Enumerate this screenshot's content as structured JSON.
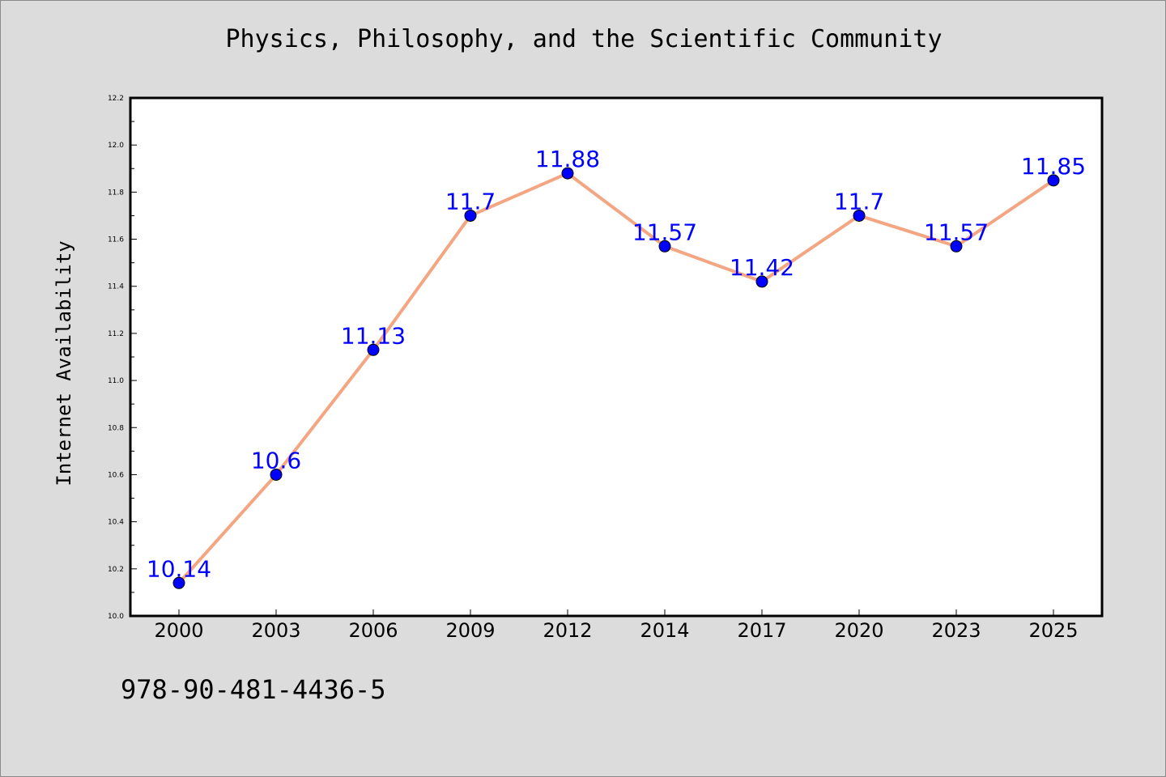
{
  "chart_data": {
    "type": "line",
    "title": "Physics, Philosophy, and the Scientific Community",
    "xlabel": "",
    "ylabel": "Internet Availability",
    "categories": [
      "2000",
      "2003",
      "2006",
      "2009",
      "2012",
      "2014",
      "2017",
      "2020",
      "2023",
      "2025"
    ],
    "series": [
      {
        "values": [
          10.14,
          10.6,
          11.13,
          11.7,
          11.88,
          11.57,
          11.42,
          11.7,
          11.57,
          11.85
        ],
        "data_labels": [
          "10.14",
          "10.6",
          "11.13",
          "11.7",
          "11.88",
          "11.57",
          "11.42",
          "11.7",
          "11.57",
          "11.85"
        ],
        "line_color": "#f4a582",
        "marker_color": "#0000ff",
        "label_color": "#0000ff"
      }
    ],
    "ylim": [
      10.0,
      12.2
    ],
    "yticks": [
      "10.0",
      "10.2",
      "10.4",
      "10.6",
      "10.8",
      "11.0",
      "11.2",
      "11.4",
      "11.6",
      "11.8",
      "12.0",
      "12.2"
    ],
    "grid": false,
    "legend": "none"
  },
  "footer": {
    "isbn": "978-90-481-4436-5"
  }
}
